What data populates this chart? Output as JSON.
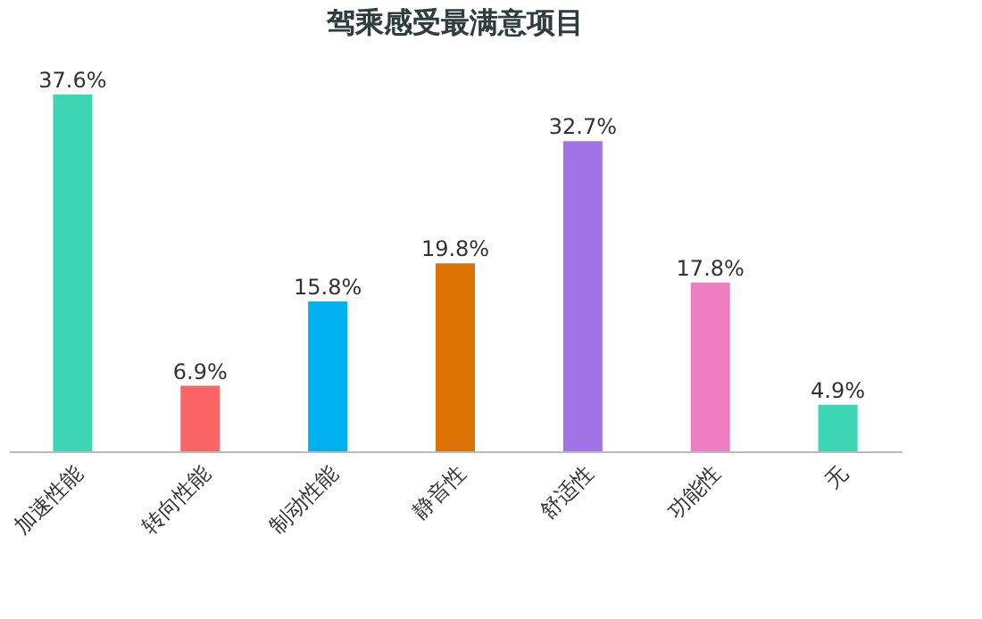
{
  "chart_data": {
    "type": "bar",
    "title": "驾乘感受最满意项目",
    "categories": [
      "加速性能",
      "转向性能",
      "制动性能",
      "静音性",
      "舒适性",
      "功能性",
      "无"
    ],
    "values": [
      37.6,
      6.9,
      15.8,
      19.8,
      32.7,
      17.8,
      4.9
    ],
    "value_labels": [
      "37.6%",
      "6.9%",
      "15.8%",
      "19.8%",
      "32.7%",
      "17.8%",
      "4.9%"
    ],
    "colors": [
      "#3dd6b5",
      "#fa6464",
      "#00b0ef",
      "#da7303",
      "#a074e6",
      "#ef7dc2",
      "#3dd6b5"
    ]
  }
}
